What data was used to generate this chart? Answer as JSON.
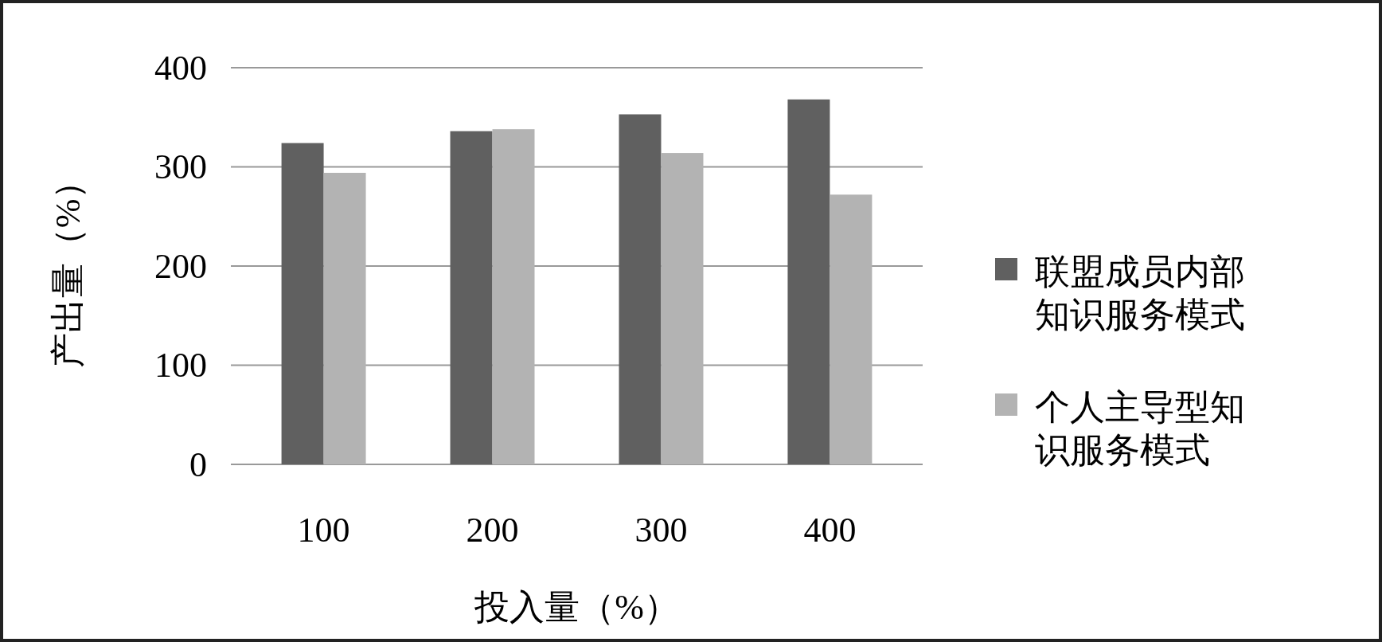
{
  "chart_data": {
    "type": "bar",
    "xlabel": "投入量（%）",
    "ylabel": "产出量（%）",
    "categories": [
      "100",
      "200",
      "300",
      "400"
    ],
    "series": [
      {
        "name": "联盟成员内部知识服务模式",
        "color": "#606060",
        "values": [
          324,
          336,
          353,
          368
        ]
      },
      {
        "name": "个人主导型知识服务模式",
        "color": "#b3b3b3",
        "values": [
          294,
          338,
          314,
          272
        ]
      }
    ],
    "ylim": [
      0,
      400
    ],
    "yticks": [
      0,
      100,
      200,
      300,
      400
    ],
    "grid": "y",
    "legend": "right"
  }
}
